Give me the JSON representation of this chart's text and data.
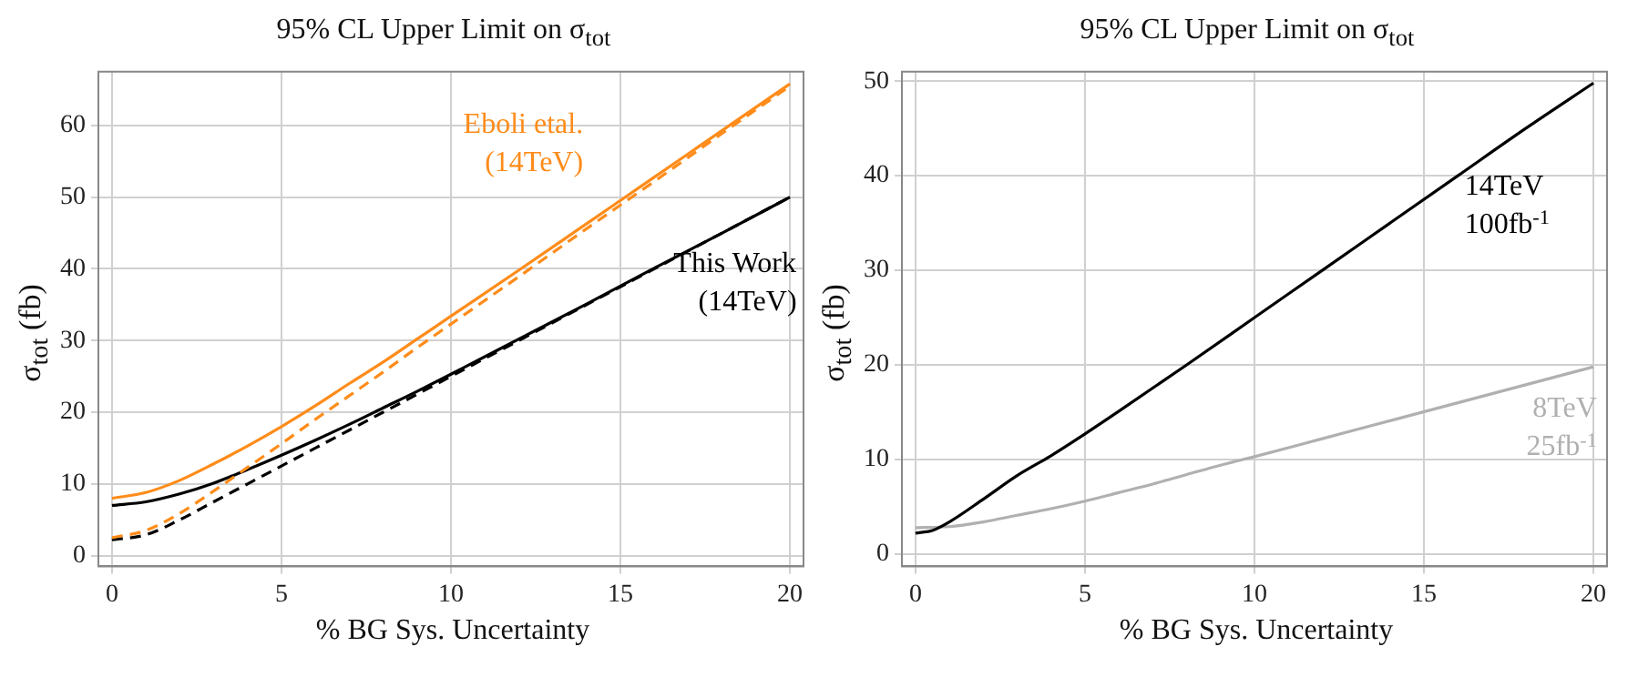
{
  "chart_data": [
    {
      "type": "line",
      "title": "95% CL Upper Limit on σ$_{tot}$",
      "xlabel": "% BG Sys. Uncertainty",
      "ylabel": "σ$_{tot}$ (fb)",
      "xlim": [
        -0.4,
        20.4
      ],
      "xticks": [
        0,
        5,
        10,
        15,
        20
      ],
      "ylim": [
        -1.5,
        67.5
      ],
      "yticks": [
        0,
        10,
        20,
        30,
        40,
        50,
        60
      ],
      "grid": true,
      "marker": "none",
      "series": [
        {
          "name": "Eboli etal. (14TeV)",
          "color": "#ff8c1a",
          "line_style": "solid",
          "x": [
            0,
            1,
            2,
            3,
            4,
            5,
            6,
            7,
            8,
            9,
            10,
            12,
            14,
            16,
            18,
            20
          ],
          "values": [
            8,
            8.8,
            10.5,
            12.8,
            15.3,
            18,
            20.9,
            24,
            27,
            30.2,
            33.4,
            39.8,
            46.3,
            52.8,
            59.3,
            65.8
          ]
        },
        {
          "color": "#ff8c1a",
          "line_style": "dashed",
          "x": [
            0,
            1,
            2,
            3,
            4,
            5,
            6,
            7,
            8,
            9,
            10,
            12,
            14,
            16,
            18,
            20
          ],
          "values": [
            2.5,
            3.5,
            5.9,
            9,
            12.3,
            15.6,
            19,
            22.3,
            25.6,
            29,
            32.3,
            38.9,
            45.6,
            52.2,
            58.9,
            65.5
          ]
        },
        {
          "name": "This Work (14TeV)",
          "color": "#000000",
          "line_style": "solid",
          "x": [
            0,
            1,
            2,
            3,
            4,
            5,
            6,
            7,
            8,
            9,
            10,
            12,
            14,
            16,
            18,
            20
          ],
          "values": [
            7,
            7.5,
            8.6,
            10.1,
            12,
            14,
            16.1,
            18.3,
            20.6,
            22.9,
            25.3,
            30.2,
            35.1,
            40.1,
            45,
            50
          ]
        },
        {
          "color": "#000000",
          "line_style": "dashed",
          "x": [
            0,
            1,
            2,
            3,
            4,
            5,
            6,
            7,
            8,
            9,
            10,
            12,
            14,
            16,
            18,
            20
          ],
          "values": [
            2.2,
            2.9,
            5,
            7.5,
            10,
            12.5,
            15,
            17.5,
            20,
            22.5,
            25,
            30,
            35,
            40,
            45,
            50
          ]
        }
      ]
    },
    {
      "type": "line",
      "title": "95% CL Upper Limit on σ$_{tot}$",
      "xlabel": "% BG Sys. Uncertainty",
      "ylabel": "σ$_{tot}$ (fb)",
      "xlim": [
        -0.4,
        20.4
      ],
      "xticks": [
        0,
        5,
        10,
        15,
        20
      ],
      "ylim": [
        -1.3,
        51
      ],
      "yticks": [
        0,
        10,
        20,
        30,
        40,
        50
      ],
      "grid": true,
      "marker": "none",
      "series": [
        {
          "name": "14TeV 100fb$^{-1}$",
          "color": "#000000",
          "line_style": "solid",
          "x": [
            0,
            0.5,
            1,
            2,
            3,
            4,
            5,
            6,
            8,
            10,
            12,
            14,
            16,
            18,
            20
          ],
          "values": [
            2.2,
            2.5,
            3.4,
            5.8,
            8.3,
            10.4,
            12.7,
            15.1,
            20,
            25,
            30,
            35,
            40,
            45,
            49.8
          ]
        },
        {
          "name": "8TeV 25fb$^{-1}$",
          "color": "#b0b0b0",
          "line_style": "solid",
          "x": [
            0,
            1,
            2,
            3,
            4,
            5,
            6,
            7,
            8,
            9,
            10,
            12,
            14,
            16,
            18,
            20
          ],
          "values": [
            2.8,
            2.9,
            3.4,
            4.1,
            4.8,
            5.6,
            6.5,
            7.4,
            8.4,
            9.4,
            10.3,
            12.2,
            14.1,
            16,
            17.9,
            19.8
          ]
        }
      ]
    }
  ]
}
